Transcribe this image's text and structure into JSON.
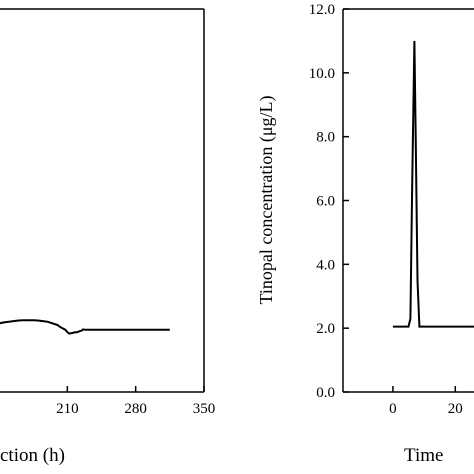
{
  "chart_data": [
    {
      "type": "line",
      "xlabel": "ction (h)",
      "ylabel": "",
      "xticks": [
        "210",
        "280",
        "350"
      ],
      "xlim": [
        140,
        350
      ],
      "ylim": [
        0,
        12
      ],
      "series": [
        {
          "x": [
            140,
            145,
            150,
            155,
            160,
            165,
            170,
            175,
            180,
            185,
            190,
            195,
            200,
            202,
            205,
            208,
            210,
            212,
            215,
            218,
            220,
            222,
            225,
            226,
            228,
            230,
            240,
            250,
            260,
            270,
            280,
            290,
            300,
            310,
            315
          ],
          "y": [
            2.15,
            2.18,
            2.2,
            2.22,
            2.24,
            2.25,
            2.25,
            2.25,
            2.24,
            2.22,
            2.2,
            2.15,
            2.1,
            2.05,
            2.0,
            1.95,
            1.88,
            1.83,
            1.85,
            1.87,
            1.87,
            1.9,
            1.93,
            1.96,
            1.95,
            1.95,
            1.95,
            1.95,
            1.95,
            1.95,
            1.95,
            1.95,
            1.95,
            1.95,
            1.95
          ]
        }
      ]
    },
    {
      "type": "line",
      "ylabel": "Tinopal  concentration  (μg/L)",
      "xlabel": "Time",
      "yticks": [
        "0.0",
        "2.0",
        "4.0",
        "6.0",
        "8.0",
        "10.0",
        "12.0"
      ],
      "xticks": [
        "0",
        "20"
      ],
      "ylim": [
        0,
        12
      ],
      "xlim": [
        -16,
        26
      ],
      "series": [
        {
          "x": [
            0,
            5,
            5.6,
            6.2,
            6.9,
            7.3,
            7.9,
            8.5,
            10,
            20,
            26
          ],
          "y": [
            2.05,
            2.05,
            2.3,
            6.5,
            11.0,
            8.0,
            3.5,
            2.05,
            2.05,
            2.05,
            2.05
          ]
        }
      ]
    }
  ]
}
